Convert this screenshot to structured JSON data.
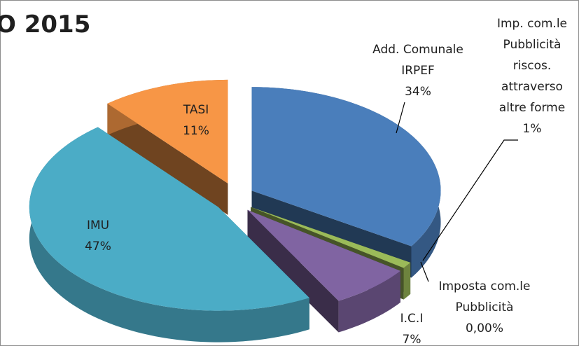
{
  "chart_data": {
    "type": "pie",
    "title": "O 2015",
    "categories": [
      "Add. Comunale\nIRPEF",
      "Imp. com.le\nPubblicità\nriscos.\nattraverso\naltre forme",
      "Imposta com.le\nPubblicità",
      "I.C.I",
      "IMU",
      "TASI"
    ],
    "values": [
      34,
      1,
      0,
      7,
      47,
      11
    ],
    "value_labels": [
      "34%",
      "1%",
      "0,00%",
      "7%",
      "47%",
      "11%"
    ],
    "colors": [
      "#4a7ebb",
      "#9bbb59",
      "#a5a5a5",
      "#8064a2",
      "#4bacc6",
      "#f79646"
    ]
  }
}
